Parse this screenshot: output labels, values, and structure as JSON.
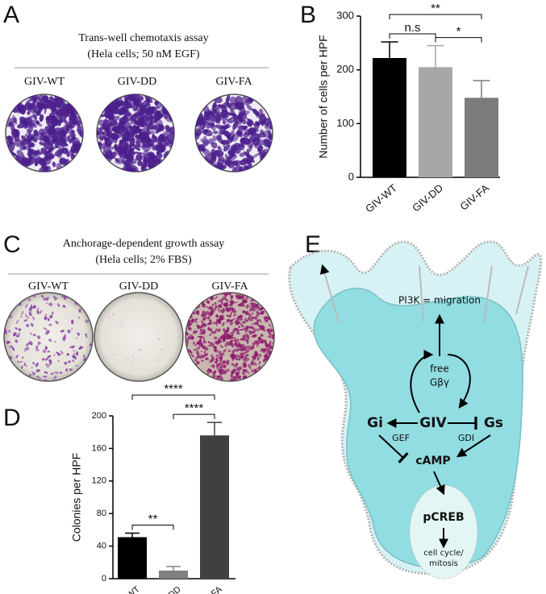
{
  "panels": {
    "A": {
      "letter": "A",
      "title": "Trans-well chemotaxis assay",
      "subtitle": "(Hela cells; 50 nM EGF)",
      "labels": [
        "GIV-WT",
        "GIV-DD",
        "GIV-FA"
      ]
    },
    "B": {
      "letter": "B"
    },
    "C": {
      "letter": "C",
      "title": "Anchorage-dependent growth assay",
      "subtitle": "(Hela cells; 2% FBS)",
      "labels": [
        "GIV-WT",
        "GIV-DD",
        "GIV-FA"
      ]
    },
    "D": {
      "letter": "D"
    },
    "E": {
      "letter": "E"
    }
  },
  "chart_data": [
    {
      "type": "bar",
      "ylabel": "Number of cells per HPF",
      "categories": [
        "GIV-WT",
        "GIV-DD",
        "GIV-FA"
      ],
      "values": [
        222,
        205,
        148
      ],
      "errors": [
        30,
        40,
        32
      ],
      "colors": [
        "#000000",
        "#a7a7a9",
        "#7b7b7b"
      ],
      "ylim": [
        0,
        300
      ],
      "yticks": [
        0,
        100,
        200,
        300
      ],
      "annotations": [
        {
          "text": "n.s",
          "between": [
            0,
            1
          ]
        },
        {
          "text": "*",
          "between": [
            1,
            2
          ]
        },
        {
          "text": "**",
          "between": [
            0,
            2
          ]
        }
      ]
    },
    {
      "type": "bar",
      "ylabel": "Colonies per HPF",
      "categories": [
        "GIV-WT",
        "GIV-DD",
        "GIV-FA"
      ],
      "values": [
        51,
        10,
        176
      ],
      "errors": [
        5,
        5,
        16
      ],
      "colors": [
        "#000000",
        "#808080",
        "#404040"
      ],
      "ylim": [
        0,
        200
      ],
      "yticks": [
        0,
        40,
        80,
        120,
        160,
        200
      ],
      "annotations": [
        {
          "text": "**",
          "between": [
            0,
            1
          ]
        },
        {
          "text": "****",
          "between": [
            1,
            2
          ]
        },
        {
          "text": "****",
          "between": [
            0,
            2
          ]
        }
      ]
    }
  ],
  "diagram": {
    "pi3k": "PI3K = migration",
    "free": "free",
    "gbg": "Gβγ",
    "gi": "Gi",
    "giv": "GIV",
    "gs": "Gs",
    "gef": "GEF",
    "gdi": "GDI",
    "camp": "cAMP",
    "pcreb": "pCREB",
    "cycle": "cell cycle/",
    "mitosis": "mitosis"
  }
}
